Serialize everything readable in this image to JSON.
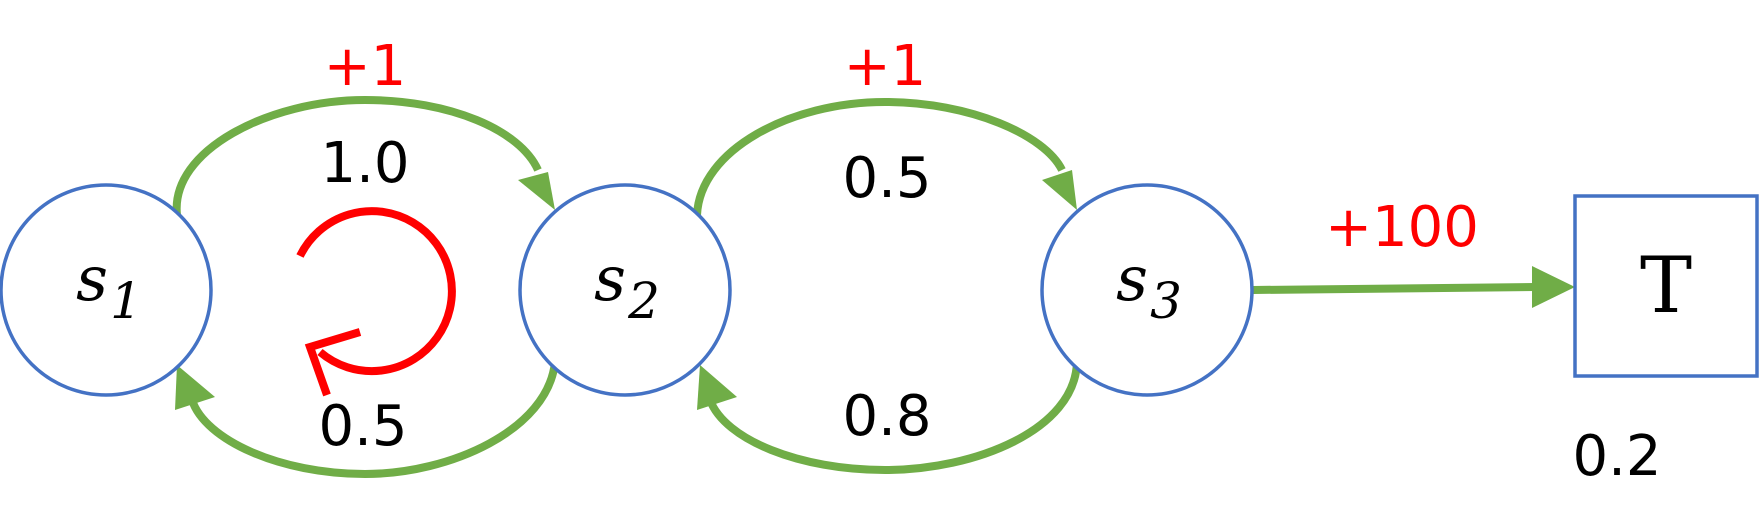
{
  "colors": {
    "node_stroke": "#4472C4",
    "edge": "#70AD47",
    "reward": "#FF0000",
    "self_loop": "#FF0000",
    "text": "#000000"
  },
  "states": [
    {
      "id": "s1",
      "letter": "s",
      "index": "1"
    },
    {
      "id": "s2",
      "letter": "s",
      "index": "2"
    },
    {
      "id": "s3",
      "letter": "s",
      "index": "3"
    }
  ],
  "terminal": {
    "id": "T",
    "label": "T",
    "probability": "0.2"
  },
  "transitions": [
    {
      "from": "s1",
      "to": "s2",
      "probability": "1.0",
      "reward": "+1"
    },
    {
      "from": "s2",
      "to": "s3",
      "probability": "0.5",
      "reward": "+1"
    },
    {
      "from": "s2",
      "to": "s1",
      "probability": "0.5",
      "reward": ""
    },
    {
      "from": "s3",
      "to": "s2",
      "probability": "0.8",
      "reward": ""
    },
    {
      "from": "s3",
      "to": "T",
      "probability": "",
      "reward": "+100"
    }
  ]
}
